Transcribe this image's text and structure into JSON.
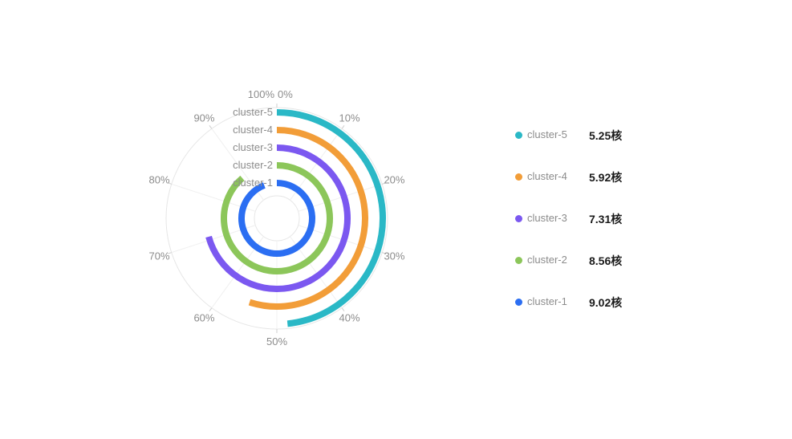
{
  "chart_data": {
    "type": "radial-bar",
    "value_unit": "核",
    "angle_ticks": [
      "0%",
      "10%",
      "20%",
      "30%",
      "40%",
      "50%",
      "60%",
      "70%",
      "80%",
      "90%",
      "100%"
    ],
    "categories": [
      "cluster-1",
      "cluster-2",
      "cluster-3",
      "cluster-4",
      "cluster-5"
    ],
    "series": [
      {
        "name": "cluster-1",
        "value": 9.02,
        "percent": 0.942,
        "color": "#2b6ef2"
      },
      {
        "name": "cluster-2",
        "value": 8.56,
        "percent": 0.887,
        "color": "#8cc65a"
      },
      {
        "name": "cluster-3",
        "value": 7.31,
        "percent": 0.708,
        "color": "#7b58f0"
      },
      {
        "name": "cluster-4",
        "value": 5.92,
        "percent": 0.55,
        "color": "#f29d38"
      },
      {
        "name": "cluster-5",
        "value": 5.25,
        "percent": 0.484,
        "color": "#2ab8c6"
      }
    ],
    "legend_position": "right",
    "legend_order": [
      "cluster-5",
      "cluster-4",
      "cluster-3",
      "cluster-2",
      "cluster-1"
    ]
  },
  "legend": [
    {
      "name": "cluster-5",
      "value": "5.25核"
    },
    {
      "name": "cluster-4",
      "value": "5.92核"
    },
    {
      "name": "cluster-3",
      "value": "7.31核"
    },
    {
      "name": "cluster-2",
      "value": "8.56核"
    },
    {
      "name": "cluster-1",
      "value": "9.02核"
    }
  ]
}
